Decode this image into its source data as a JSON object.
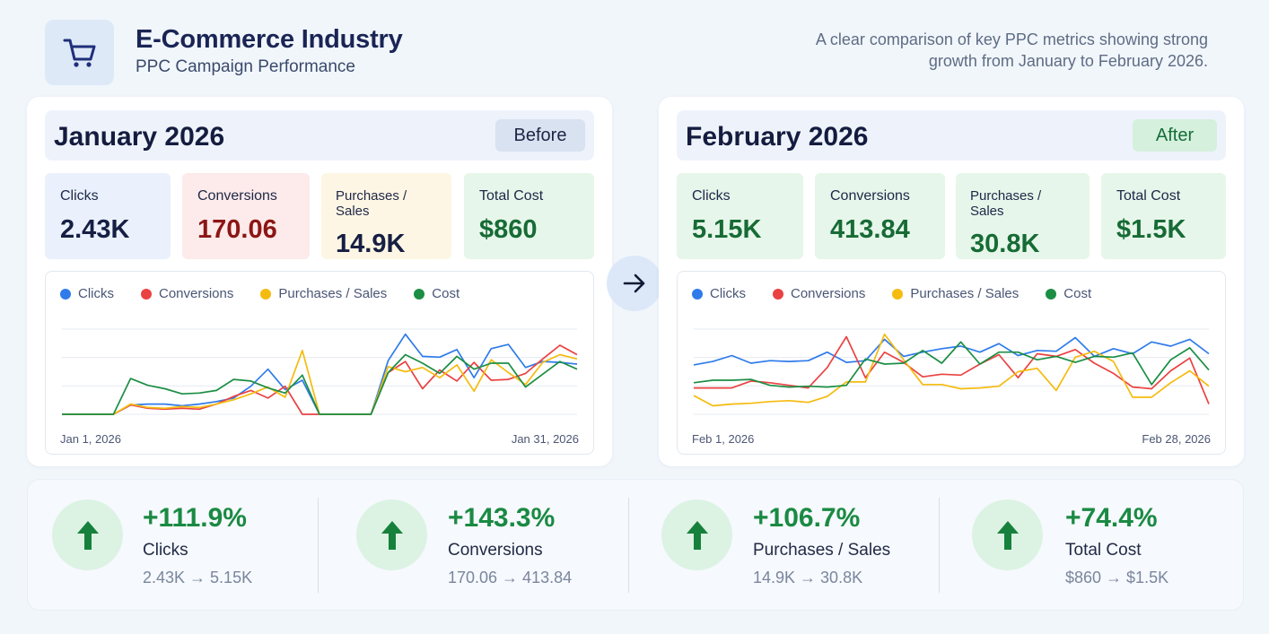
{
  "header": {
    "title": "E-Commerce Industry",
    "subtitle": "PPC Campaign Performance",
    "description": "A clear comparison of key PPC metrics showing strong growth from January to February 2026.",
    "logo_icon": "shopping-cart-icon"
  },
  "colors": {
    "clicks": "#2f7bea",
    "conversions": "#ea4242",
    "purchases": "#f5bb0f",
    "cost": "#1b8e44",
    "positive": "#1a8a43"
  },
  "january": {
    "title": "January 2026",
    "badge": "Before",
    "kpis": [
      {
        "label": "Clicks",
        "value": "2.43K",
        "color": "#161f43"
      },
      {
        "label": "Conversions",
        "value": "170.06",
        "color": "#8c1515"
      },
      {
        "label": "Purchases / Sales",
        "value": "14.9K",
        "color": "#161f43"
      },
      {
        "label": "Total Cost",
        "value": "$860",
        "color": "#176b35"
      }
    ],
    "legend": [
      "Clicks",
      "Conversions",
      "Purchases / Sales",
      "Cost"
    ],
    "start_date": "Jan 1, 2026",
    "end_date": "Jan 31, 2026"
  },
  "february": {
    "title": "February 2026",
    "badge": "After",
    "kpis": [
      {
        "label": "Clicks",
        "value": "5.15K",
        "color": "#176b35"
      },
      {
        "label": "Conversions",
        "value": "413.84",
        "color": "#176b35"
      },
      {
        "label": "Purchases / Sales",
        "value": "30.8K",
        "color": "#176b35"
      },
      {
        "label": "Total Cost",
        "value": "$1.5K",
        "color": "#176b35"
      }
    ],
    "legend": [
      "Clicks",
      "Conversions",
      "Purchases / Sales",
      "Cost"
    ],
    "start_date": "Feb 1, 2026",
    "end_date": "Feb 28, 2026"
  },
  "summary": [
    {
      "pct": "+111.9%",
      "name": "Clicks",
      "change": "2.43K → 5.15K",
      "icon": "arrow-up-icon"
    },
    {
      "pct": "+143.3%",
      "name": "Conversions",
      "change": "170.06 → 413.84",
      "icon": "arrow-up-icon"
    },
    {
      "pct": "+106.7%",
      "name": "Purchases / Sales",
      "change": "14.9K → 30.8K",
      "icon": "arrow-up-icon"
    },
    {
      "pct": "+74.4%",
      "name": "Total Cost",
      "change": "$860 → $1.5K",
      "icon": "arrow-up-icon"
    }
  ],
  "chart_data": [
    {
      "type": "line",
      "x_start": "Jan 1, 2026",
      "x_end": "Jan 31, 2026",
      "ylim": [
        0,
        100
      ],
      "grid": "horizontal",
      "legend_position": "top-left",
      "series": [
        {
          "name": "Clicks",
          "values": [
            0,
            0,
            0,
            0,
            11,
            12,
            12,
            10,
            12,
            15,
            19,
            33,
            53,
            29,
            40,
            0,
            0,
            0,
            0,
            63,
            94,
            68,
            67,
            76,
            43,
            77,
            82,
            55,
            62,
            61,
            59
          ]
        },
        {
          "name": "Conversions",
          "values": [
            0,
            0,
            0,
            0,
            11,
            7,
            6,
            7,
            6,
            12,
            21,
            28,
            19,
            33,
            0,
            0,
            0,
            0,
            0,
            49,
            62,
            30,
            52,
            39,
            61,
            40,
            41,
            48,
            65,
            81,
            70
          ]
        },
        {
          "name": "Purchases / Sales",
          "values": [
            0,
            0,
            0,
            0,
            12,
            8,
            7,
            9,
            8,
            12,
            17,
            24,
            32,
            20,
            75,
            0,
            0,
            0,
            0,
            56,
            50,
            55,
            43,
            58,
            27,
            64,
            49,
            35,
            61,
            70,
            65
          ]
        },
        {
          "name": "Cost",
          "values": [
            0,
            0,
            0,
            0,
            42,
            34,
            30,
            24,
            25,
            28,
            41,
            39,
            31,
            25,
            46,
            0,
            0,
            0,
            0,
            49,
            70,
            60,
            48,
            68,
            53,
            60,
            60,
            32,
            47,
            62,
            53
          ]
        }
      ]
    },
    {
      "type": "line",
      "x_start": "Feb 1, 2026",
      "x_end": "Feb 28, 2026",
      "ylim": [
        0,
        100
      ],
      "grid": "horizontal",
      "legend_position": "top-left",
      "series": [
        {
          "name": "Clicks",
          "values": [
            58,
            62,
            69,
            60,
            63,
            62,
            63,
            73,
            61,
            63,
            88,
            68,
            73,
            77,
            80,
            73,
            83,
            69,
            75,
            74,
            90,
            68,
            77,
            71,
            85,
            80,
            88,
            71
          ]
        },
        {
          "name": "Conversions",
          "values": [
            31,
            31,
            31,
            39,
            37,
            34,
            31,
            55,
            91,
            43,
            73,
            61,
            44,
            47,
            46,
            59,
            70,
            43,
            71,
            68,
            76,
            60,
            48,
            32,
            30,
            51,
            66,
            12
          ]
        },
        {
          "name": "Purchases / Sales",
          "values": [
            22,
            10,
            12,
            13,
            15,
            16,
            14,
            21,
            38,
            38,
            94,
            64,
            35,
            35,
            30,
            31,
            33,
            50,
            54,
            28,
            67,
            74,
            62,
            20,
            20,
            37,
            51,
            33
          ]
        },
        {
          "name": "Cost",
          "values": [
            37,
            40,
            40,
            41,
            34,
            32,
            33,
            32,
            34,
            65,
            59,
            60,
            75,
            60,
            85,
            59,
            73,
            73,
            64,
            68,
            61,
            68,
            67,
            72,
            35,
            64,
            78,
            52
          ]
        }
      ]
    }
  ]
}
